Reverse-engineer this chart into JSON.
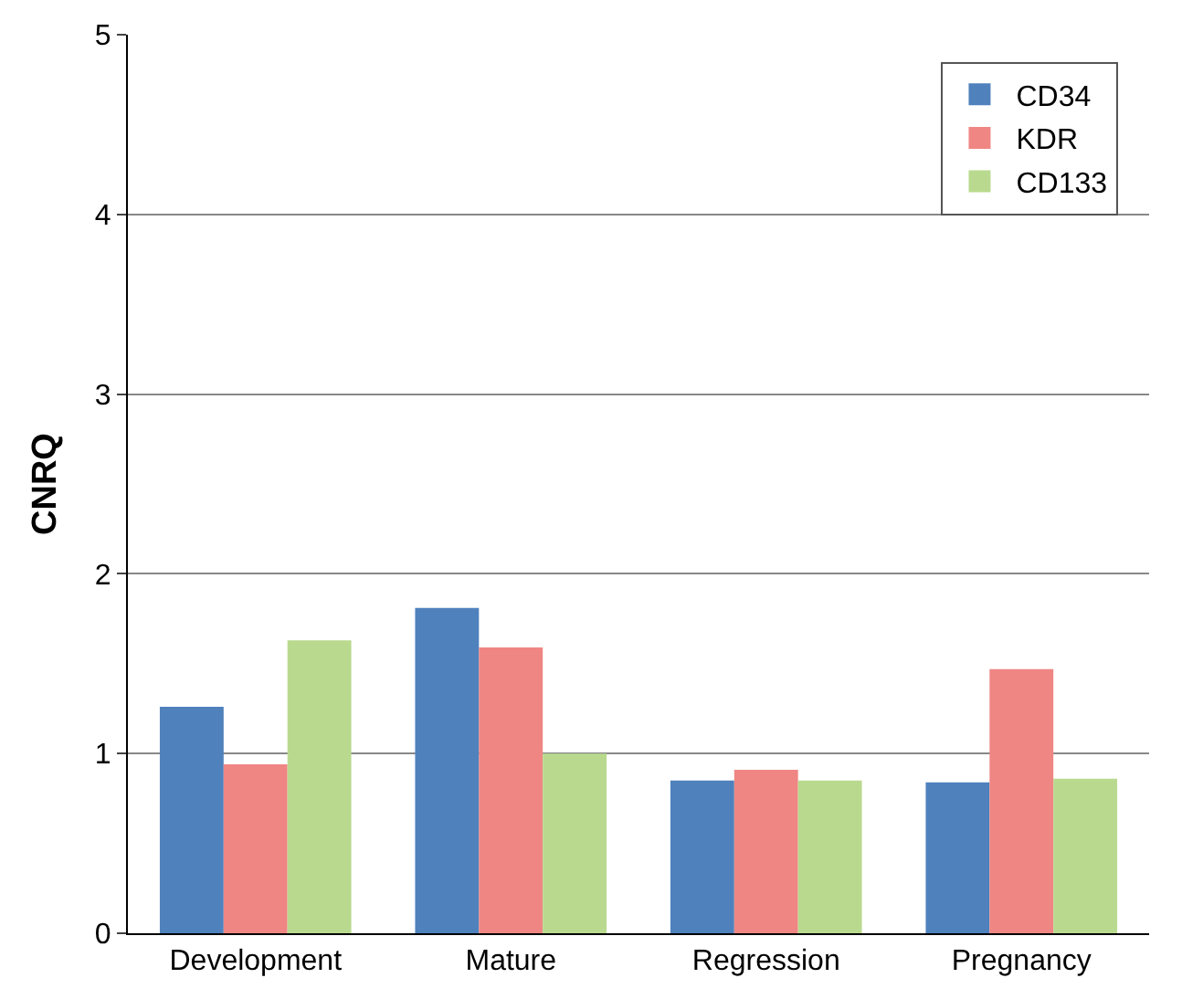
{
  "chart_data": {
    "type": "bar",
    "ylabel": "CNRQ",
    "categories": [
      "Development",
      "Mature",
      "Regression",
      "Pregnancy"
    ],
    "series": [
      {
        "name": "CD34",
        "color": "#4f81bd",
        "values": [
          1.26,
          1.81,
          0.85,
          0.84
        ]
      },
      {
        "name": "KDR",
        "color": "#ef8683",
        "values": [
          0.94,
          1.59,
          0.91,
          1.47
        ]
      },
      {
        "name": "CD133",
        "color": "#b9da8e",
        "values": [
          1.63,
          1.0,
          0.85,
          0.86
        ]
      }
    ],
    "ylim": [
      0,
      5
    ],
    "yticks": [
      0,
      1,
      2,
      3,
      4,
      5
    ],
    "grid": "y",
    "legend": "top right"
  }
}
